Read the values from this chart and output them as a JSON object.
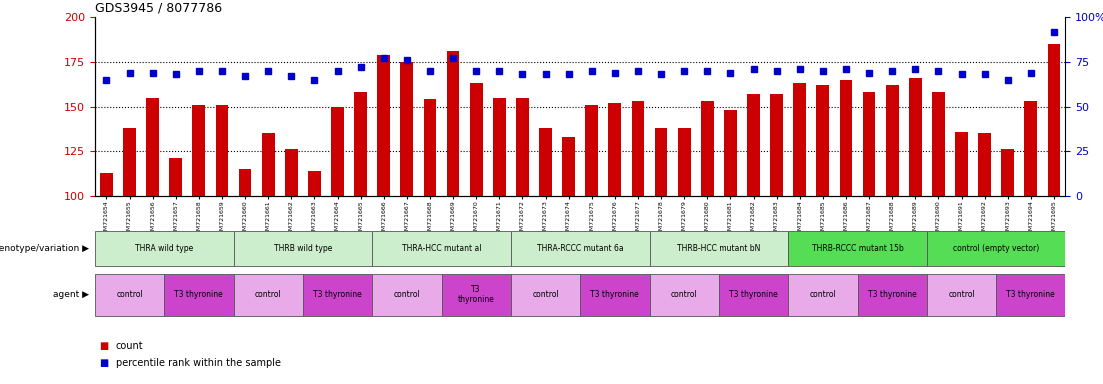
{
  "title": "GDS3945 / 8077786",
  "samples": [
    "GSM721654",
    "GSM721655",
    "GSM721656",
    "GSM721657",
    "GSM721658",
    "GSM721659",
    "GSM721660",
    "GSM721661",
    "GSM721662",
    "GSM721663",
    "GSM721664",
    "GSM721665",
    "GSM721666",
    "GSM721667",
    "GSM721668",
    "GSM721669",
    "GSM721670",
    "GSM721671",
    "GSM721672",
    "GSM721673",
    "GSM721674",
    "GSM721675",
    "GSM721676",
    "GSM721677",
    "GSM721678",
    "GSM721679",
    "GSM721680",
    "GSM721681",
    "GSM721682",
    "GSM721683",
    "GSM721684",
    "GSM721685",
    "GSM721686",
    "GSM721687",
    "GSM721688",
    "GSM721689",
    "GSM721690",
    "GSM721691",
    "GSM721692",
    "GSM721693",
    "GSM721694",
    "GSM721695"
  ],
  "counts": [
    113,
    138,
    155,
    121,
    151,
    151,
    115,
    135,
    126,
    114,
    150,
    158,
    179,
    175,
    154,
    181,
    163,
    155,
    155,
    138,
    133,
    151,
    152,
    153,
    138,
    138,
    153,
    148,
    157,
    157,
    163,
    162,
    165,
    158,
    162,
    166,
    158,
    136,
    135,
    126,
    153,
    185
  ],
  "percentiles": [
    65,
    69,
    69,
    68,
    70,
    70,
    67,
    70,
    67,
    65,
    70,
    72,
    77,
    76,
    70,
    77,
    70,
    70,
    68,
    68,
    68,
    70,
    69,
    70,
    68,
    70,
    70,
    69,
    71,
    70,
    71,
    70,
    71,
    69,
    70,
    71,
    70,
    68,
    68,
    65,
    69,
    92
  ],
  "ylim_left": [
    100,
    200
  ],
  "ylim_right": [
    0,
    100
  ],
  "yticks_left": [
    100,
    125,
    150,
    175,
    200
  ],
  "yticks_right": [
    0,
    25,
    50,
    75,
    100
  ],
  "bar_color": "#cc0000",
  "marker_color": "#0000cc",
  "genotype_groups": [
    {
      "label": "THRA wild type",
      "start": 0,
      "end": 5,
      "color": "#cceecc"
    },
    {
      "label": "THRB wild type",
      "start": 6,
      "end": 11,
      "color": "#cceecc"
    },
    {
      "label": "THRA-HCC mutant al",
      "start": 12,
      "end": 17,
      "color": "#cceecc"
    },
    {
      "label": "THRA-RCCC mutant 6a",
      "start": 18,
      "end": 23,
      "color": "#cceecc"
    },
    {
      "label": "THRB-HCC mutant bN",
      "start": 24,
      "end": 29,
      "color": "#cceecc"
    },
    {
      "label": "THRB-RCCC mutant 15b",
      "start": 30,
      "end": 35,
      "color": "#55dd55"
    },
    {
      "label": "control (empty vector)",
      "start": 36,
      "end": 41,
      "color": "#55dd55"
    }
  ],
  "agent_groups": [
    {
      "label": "control",
      "start": 0,
      "end": 2,
      "color": "#e8aae8"
    },
    {
      "label": "T3 thyronine",
      "start": 3,
      "end": 5,
      "color": "#cc44cc"
    },
    {
      "label": "control",
      "start": 6,
      "end": 8,
      "color": "#e8aae8"
    },
    {
      "label": "T3 thyronine",
      "start": 9,
      "end": 11,
      "color": "#cc44cc"
    },
    {
      "label": "control",
      "start": 12,
      "end": 14,
      "color": "#e8aae8"
    },
    {
      "label": "T3\nthyronine",
      "start": 15,
      "end": 17,
      "color": "#cc44cc"
    },
    {
      "label": "control",
      "start": 18,
      "end": 20,
      "color": "#e8aae8"
    },
    {
      "label": "T3 thyronine",
      "start": 21,
      "end": 23,
      "color": "#cc44cc"
    },
    {
      "label": "control",
      "start": 24,
      "end": 26,
      "color": "#e8aae8"
    },
    {
      "label": "T3 thyronine",
      "start": 27,
      "end": 29,
      "color": "#cc44cc"
    },
    {
      "label": "control",
      "start": 30,
      "end": 32,
      "color": "#e8aae8"
    },
    {
      "label": "T3 thyronine",
      "start": 33,
      "end": 35,
      "color": "#cc44cc"
    },
    {
      "label": "control",
      "start": 36,
      "end": 38,
      "color": "#e8aae8"
    },
    {
      "label": "T3 thyronine",
      "start": 39,
      "end": 41,
      "color": "#cc44cc"
    }
  ],
  "legend_count_color": "#cc0000",
  "legend_pct_color": "#0000cc",
  "bg_color": "#ffffff",
  "grid_color": "#000000",
  "tick_label_color_left": "#cc0000",
  "tick_label_color_right": "#0000cc",
  "grid_lines": [
    125,
    150,
    175
  ]
}
